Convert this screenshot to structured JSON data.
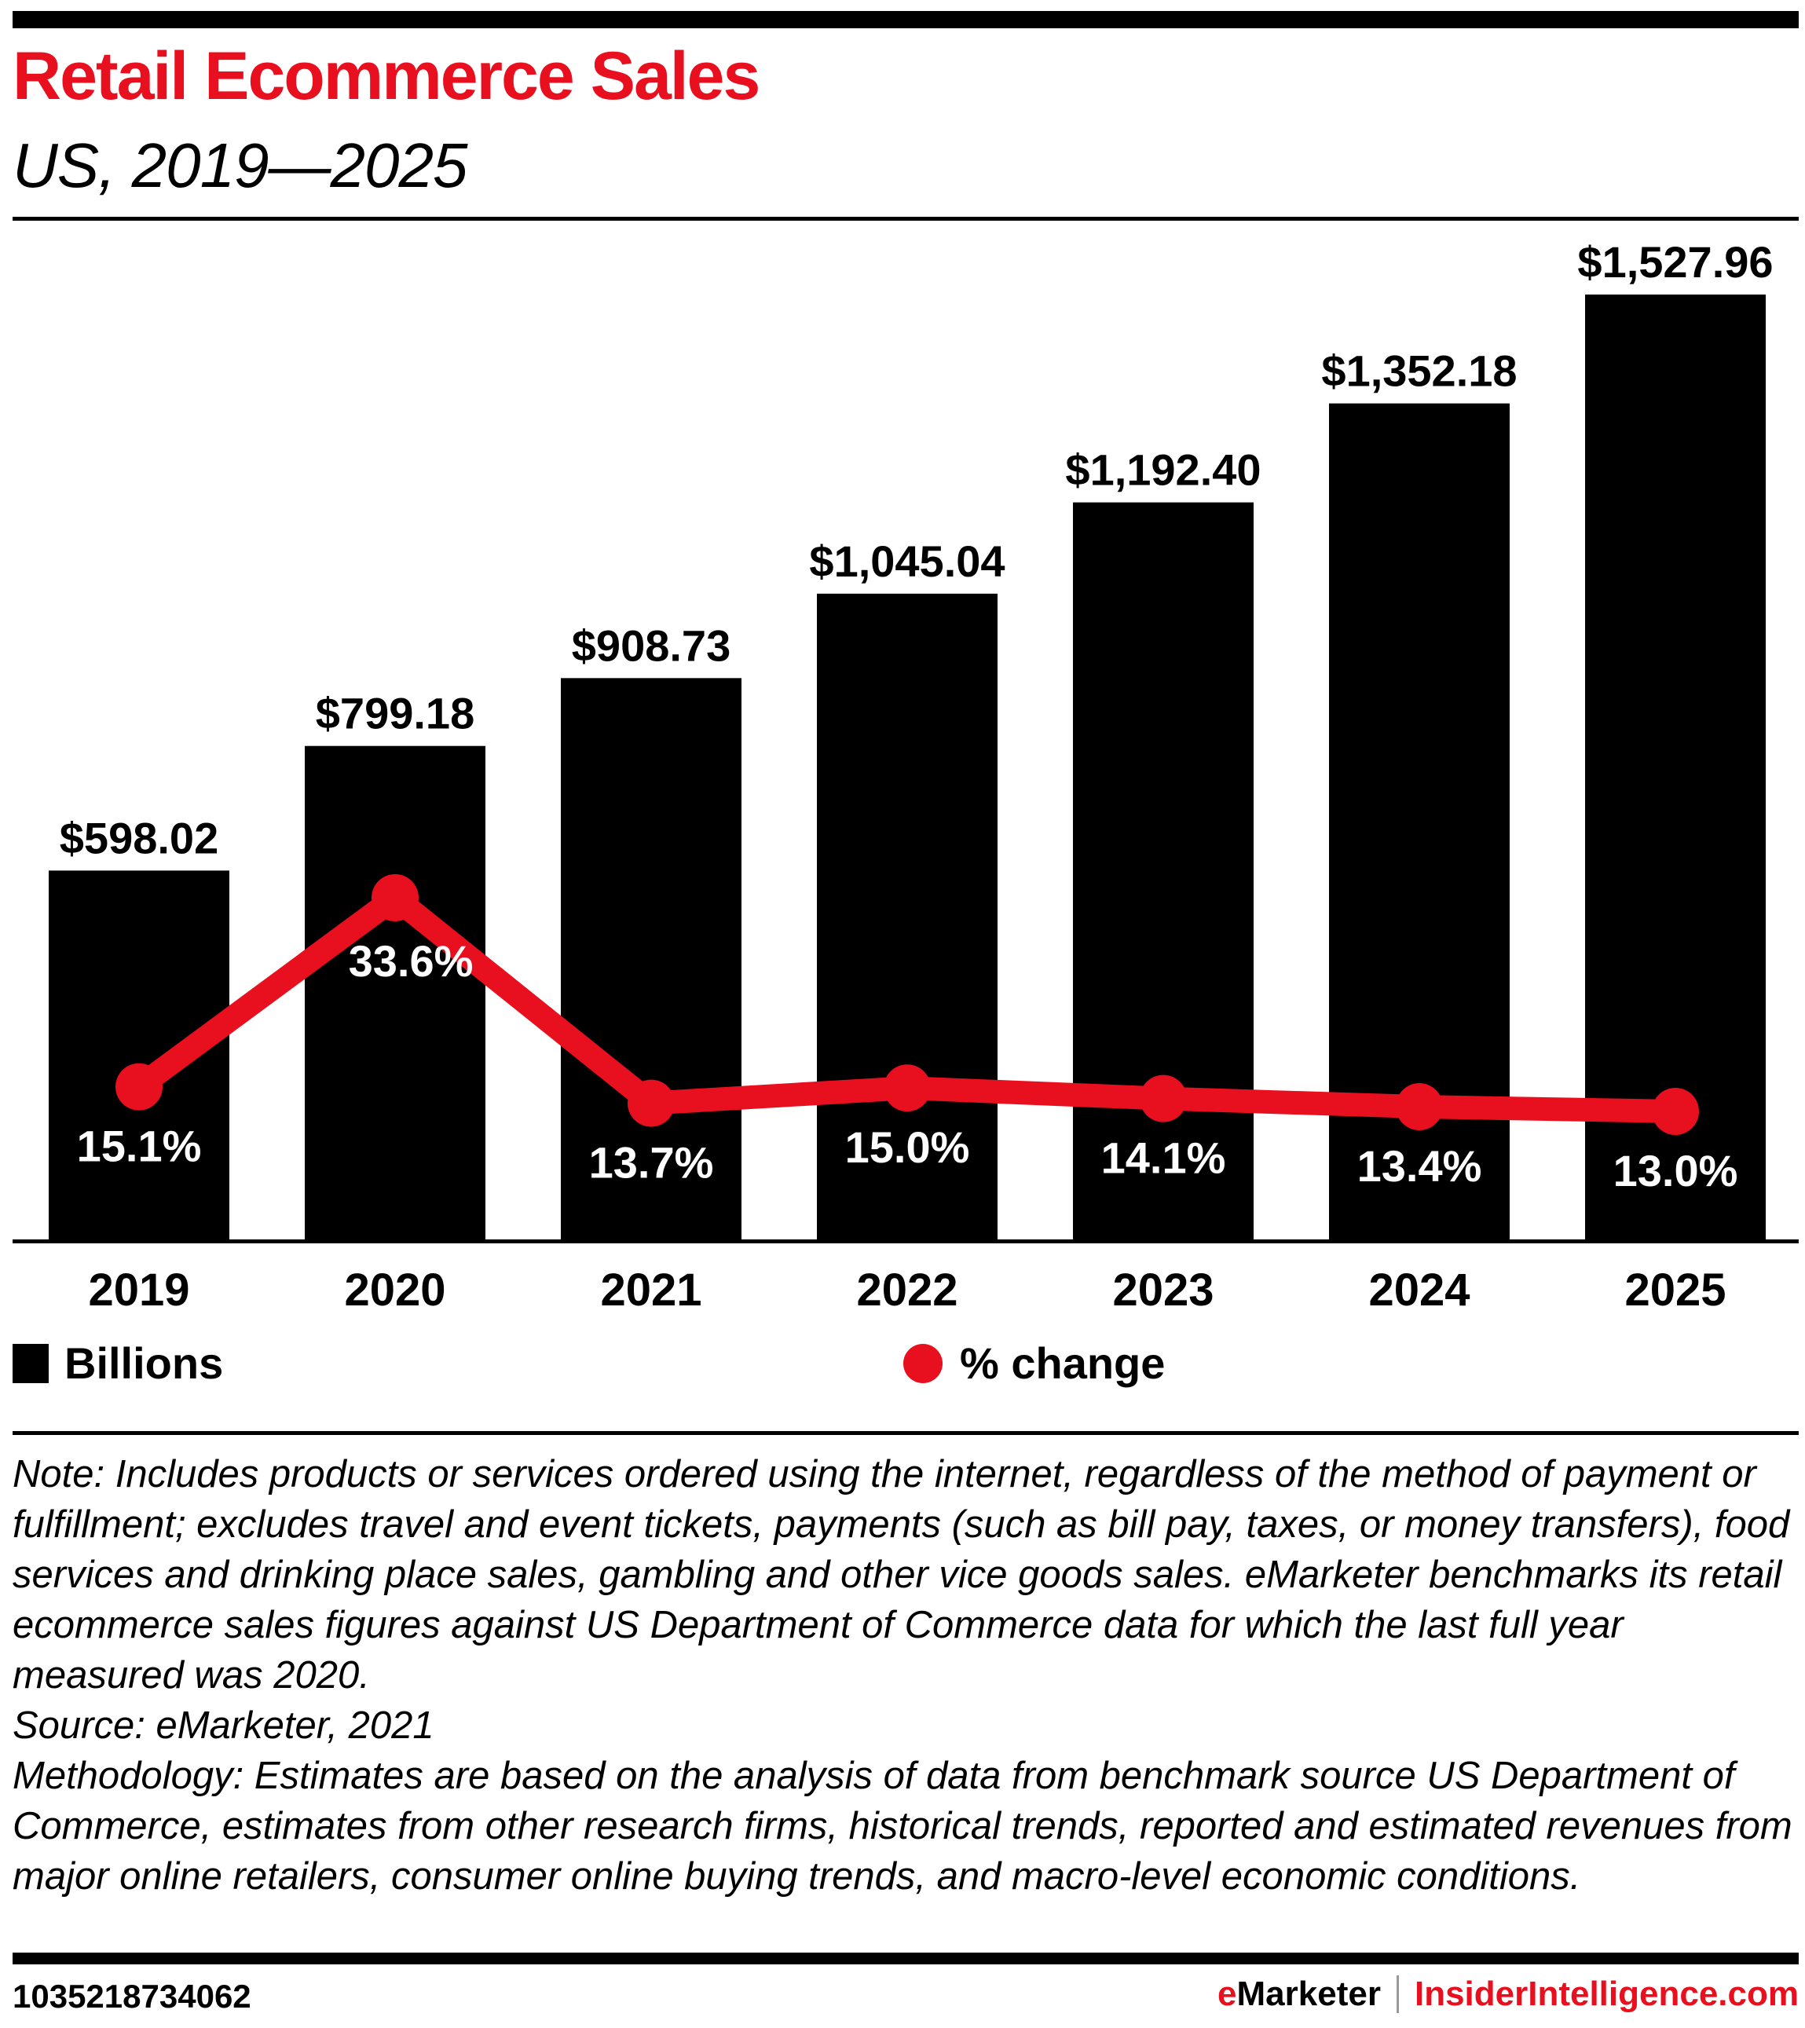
{
  "header": {
    "title": "Retail Ecommerce Sales",
    "subtitle": "US, 2019—2025"
  },
  "colors": {
    "accent": "#e8101e",
    "bar": "#000000",
    "text": "#000000"
  },
  "chart_data": {
    "type": "bar",
    "title": "Retail Ecommerce Sales",
    "subtitle": "US, 2019—2025",
    "categories": [
      "2019",
      "2020",
      "2021",
      "2022",
      "2023",
      "2024",
      "2025"
    ],
    "series": [
      {
        "name": "Billions",
        "type": "bar",
        "color": "#000000",
        "values": [
          598.02,
          799.18,
          908.73,
          1045.04,
          1192.4,
          1352.18,
          1527.96
        ],
        "labels": [
          "$598.02",
          "$799.18",
          "$908.73",
          "$1,045.04",
          "$1,192.40",
          "$1,352.18",
          "$1,527.96"
        ]
      },
      {
        "name": "% change",
        "type": "line",
        "color": "#e8101e",
        "values": [
          15.1,
          33.6,
          13.7,
          15.0,
          14.1,
          13.4,
          13.0
        ],
        "labels": [
          "15.1%",
          "33.6%",
          "13.7%",
          "15.0%",
          "14.1%",
          "13.4%",
          "13.0%"
        ]
      }
    ],
    "xlabel": "",
    "ylabel": "",
    "ylim": [
      0,
      1527.96
    ],
    "grid": false,
    "legend_position": "bottom"
  },
  "legend": {
    "bar_label": "Billions",
    "line_label": "% change"
  },
  "notes": {
    "note": "Note: Includes products or services ordered using the internet, regardless of the method of payment or fulfillment; excludes travel and event tickets, payments (such as bill pay, taxes, or money transfers), food services and drinking place sales, gambling and other vice goods sales. eMarketer benchmarks its retail ecommerce sales figures against US Department of Commerce data for which the last full year measured was 2020.",
    "source": "Source: eMarketer, 2021",
    "methodology": "Methodology: Estimates are based on the analysis of data from benchmark source US Department of Commerce, estimates from other research firms, historical trends, reported and estimated revenues from major online retailers, consumer online buying trends, and macro-level economic conditions."
  },
  "footer": {
    "chart_id": "1035218734062",
    "brand_e": "e",
    "brand_rest": "Marketer",
    "site": "InsiderIntelligence.com"
  }
}
